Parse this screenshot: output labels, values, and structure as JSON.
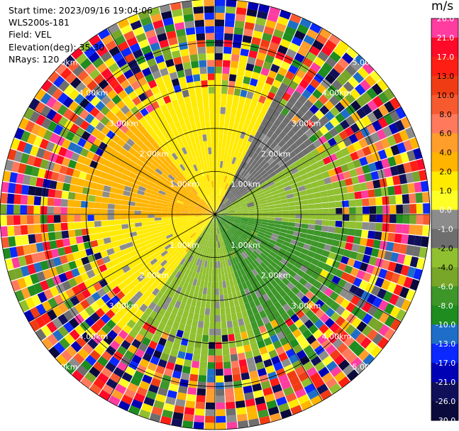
{
  "info": {
    "start_time": "Start time: 2023/09/16 19:04:06",
    "device": "WLS200s-181",
    "field": "Field: VEL",
    "elevation": "Elevation(deg): 35.30",
    "nrays": "NRays: 120"
  },
  "chart_data": {
    "type": "heatmap",
    "projection": "polar-ppi",
    "field": "VEL",
    "n_rays": 120,
    "max_range_km": 5.0,
    "range_ring_km": [
      1.0,
      2.0,
      3.0,
      4.0,
      5.0
    ],
    "range_ring_labels": [
      "1.00km",
      "2.00km",
      "3.00km",
      "4.00km",
      "5.00km"
    ],
    "colorbar": {
      "unit": "m/s",
      "ticks": [
        "26.0",
        "21.0",
        "17.0",
        "13.0",
        "10.0",
        "8.0",
        "6.0",
        "4.0",
        "2.0",
        "1.0",
        "0.0",
        "-1.0",
        "-2.0",
        "-4.0",
        "-6.0",
        "-8.0",
        "-10.0",
        "-13.0",
        "-17.0",
        "-21.0",
        "-26.0",
        "-30.0"
      ],
      "tick_values": [
        26,
        21,
        17,
        13,
        10,
        8,
        6,
        4,
        2,
        1,
        0,
        -1,
        -2,
        -4,
        -6,
        -8,
        -10,
        -13,
        -17,
        -21,
        -26,
        -30
      ],
      "segment_colors": [
        "#ff3ca0",
        "#ff0a28",
        "#ff1e14",
        "#f03c14",
        "#f85a30",
        "#ff7a5c",
        "#ff9e2a",
        "#ffb400",
        "#ffea00",
        "#ffff28",
        "#8c8c8c",
        "#6e6e6e",
        "#90c030",
        "#78a628",
        "#3c9628",
        "#1e8c1e",
        "#1e6ec8",
        "#0a28ff",
        "#0000b4",
        "#10105a",
        "#0a0a3c"
      ]
    }
  }
}
